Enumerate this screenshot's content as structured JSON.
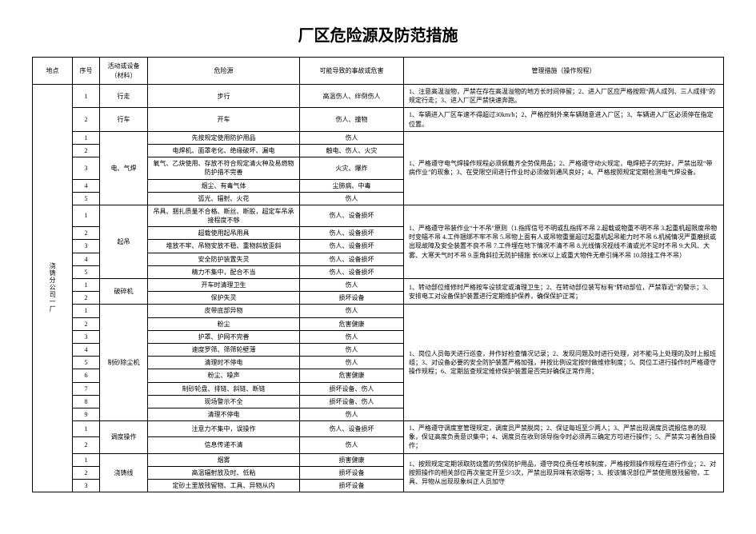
{
  "title": "厂区危险源及防范措施",
  "columns": {
    "location": "地点",
    "seq": "序号",
    "equipment": "活动或设备（材料）",
    "hazard": "危险源",
    "accident": "可能导致的事故或危害",
    "measures": "管理措施（操作规程）"
  },
  "location_label": "浇铸分公司一厂",
  "groups": [
    {
      "equipment": "行走",
      "measures": "1、注意高温溢物，严禁在存在高温溢物的地方长时间停留；2、进入厂区应严格按照“两人成列、三人成排”的规定行走；3、进入厂区严禁快速奔跑。",
      "rows": [
        {
          "seq": "1",
          "hazard": "步行",
          "accident": "高温伤人、绊倒伤人"
        }
      ]
    },
    {
      "equipment": "行车",
      "measures": "1、车辆进入厂区车速不得超过30km/h；2、严格控制外来车辆随意进入厂区；3、车辆进入厂区必须停在指定位置。",
      "rows": [
        {
          "seq": "2",
          "hazard": "开车",
          "accident": "伤人、撞物"
        }
      ]
    },
    {
      "equipment": "电、气焊",
      "measures": "1、严格遵守电气焊操作规程必须佩戴齐全劳保用品；2、严格遵守动火规定，电焊把子的完好，严禁出现“带病作业”的现象；3、在受限空间进行作业时必须做到通风良好；4、严格按照规定定期检测电气焊设备。",
      "rows": [
        {
          "seq": "1",
          "hazard": "先按规定使用防护用品",
          "accident": "伤人"
        },
        {
          "seq": "2",
          "hazard": "电焊机、面罩老化、绝缘破坏、漏电",
          "accident": "触电、伤人、火灾"
        },
        {
          "seq": "3",
          "hazard": "氧气、乙炔使用、存放不符合规定清火种及易燃物防护措不完善",
          "accident": "火灾、爆炸"
        },
        {
          "seq": "4",
          "hazard": "烟尘、有毒气体",
          "accident": "尘肺病、中毒"
        },
        {
          "seq": "5",
          "hazard": "弧光、辐射、火花",
          "accident": "伤人"
        }
      ]
    },
    {
      "equipment": "起吊",
      "measures": "1、严格遵守吊装作业“十不吊”原则（1.指挥信号不明或乱指挥不吊  2.超载或物重不明不吊  3.起重机超限度吊物时变幅不吊  4.工件捆绑不牢不吊  5.吊物上面有人或吊物重量超过起重机起吊能力时不吊  6.机械情况严重磨损或出现故障及安全装置不良不吊  7.工件埋在地下情况不清不吊  8.光线情况视线不清或光不足时不吊  9.大风、大雾、大寒天气时不吊  9.歪角斜拉无防护措施  长6米以上或重大物件无牵引绳不吊 10.除挂工件不吊）",
      "rows": [
        {
          "seq": "1",
          "hazard": "吊具、捆扎质量不合格、断丝、断股，超定车吊承接程度不够",
          "accident": "伤人、设备损坏"
        },
        {
          "seq": "2",
          "hazard": "超载使用起吊用具",
          "accident": "伤人、设备损坏"
        },
        {
          "seq": "3",
          "hazard": "堆放不牢、吊物安放不稳、重物斜放歪斜",
          "accident": "伤人、设备损坏"
        },
        {
          "seq": "4",
          "hazard": "安全防护装置失灵",
          "accident": "伤人、设备损坏"
        },
        {
          "seq": "5",
          "hazard": "精力不集中，配合不当",
          "accident": "伤人、设备损坏"
        }
      ]
    },
    {
      "equipment": "破碎机",
      "measures": "1、转动部位维修时严格按车设锁定或清理卫生；2、在转动部位装写标有“转动部位，严禁靠近”的警示；3、安排电工对设备保护装置进行定期维护保养，确保保护正常；",
      "rows": [
        {
          "seq": "1",
          "hazard": "开车时清理卫生",
          "accident": "伤人"
        },
        {
          "seq": "2",
          "hazard": "保护失灵",
          "accident": "损坏设备"
        }
      ]
    },
    {
      "equipment": "制砂除尘机",
      "measures": "1、岗位人员每天进行巡查，并作好检查情况记录；2、发现问题及时进行处理，对不能马上处理的及时上报班组；3、对设备必要的安全防护装置严格加强，并按比例设定按时做维修制度；5、岗位工进行操作时严格遵守操作规程；6、定期监查规定维修保护装置是否完好确保正常作用；",
      "rows": [
        {
          "seq": "1",
          "hazard": "皮带底部异物",
          "accident": "伤人"
        },
        {
          "seq": "2",
          "hazard": "粉尘",
          "accident": "危害健康"
        },
        {
          "seq": "3",
          "hazard": "护罩、护网不完善",
          "accident": "伤人"
        },
        {
          "seq": "4",
          "hazard": "速度罗筛、筛筛轮壁薄",
          "accident": "伤人"
        },
        {
          "seq": "5",
          "hazard": "清理时不停电",
          "accident": "伤人"
        },
        {
          "seq": "6",
          "hazard": "粉尘、噪声",
          "accident": "危害健康"
        },
        {
          "seq": "7",
          "hazard": "制砂轮盘、排链、斜链、断链",
          "accident": "损坏设备、伤人"
        },
        {
          "seq": "8",
          "hazard": "现场警示不全",
          "accident": "损坏设备、伤人"
        },
        {
          "seq": "9",
          "hazard": "清理不停电",
          "accident": "伤人"
        }
      ]
    },
    {
      "equipment": "调度操作",
      "measures": "1、严格遵守调度室管理规定，调度员严禁脱岗；2、保证每班至少两人；3、严禁出现调度员谎报信息的现象，保证高度负责意识集中；4、调度员在收到领导指令时必须再三确定方可进行操作；5、严禁实习者独自操作；",
      "rows": [
        {
          "seq": "1",
          "hazard": "注意力不集中，误操作",
          "accident": "伤人、设备损坏"
        },
        {
          "seq": "2",
          "hazard": "信息传递不清",
          "accident": "伤人"
        }
      ]
    },
    {
      "equipment": "浇铸线",
      "measures": "1、按照规定定期领取防烧置的劳保防护用品，遵守岗位责任考核制度，严格按照操作规程在进行作业；2、对按照操作的相关部位再次鉴定开至少3次，严禁出现异味有浓烟等；3、按该情况部位严禁使用放残留物，工具、异物从出现现象纠正人员加守",
      "rows": [
        {
          "seq": "1",
          "hazard": "烟雾",
          "accident": "损害健康"
        },
        {
          "seq": "2",
          "hazard": "高温辐射放及时、低粘",
          "accident": "损坏设备"
        },
        {
          "seq": "3",
          "hazard": "定砂土里放残留物、工具、异物从内",
          "accident": "损坏设备"
        }
      ]
    }
  ]
}
